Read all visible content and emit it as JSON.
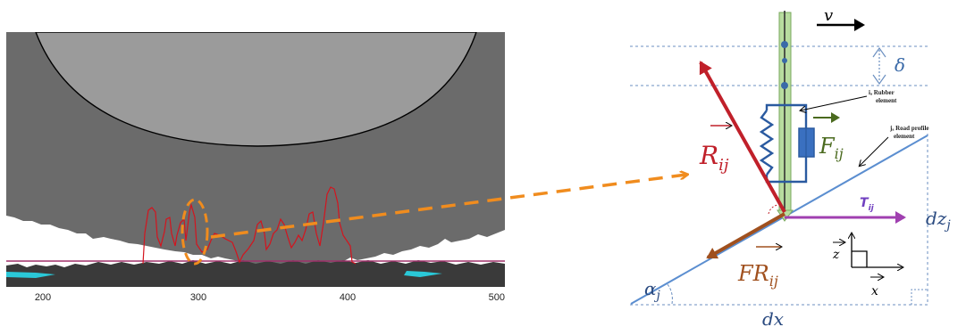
{
  "colors": {
    "panel_bg": "#6b6b6b",
    "tire_fill": "#9b9b9b",
    "road_profile": "#3a3a3a",
    "contact_trace": "#d4141e",
    "reference_line": "#a0306a",
    "water": "#2ac8d8",
    "zoom_arrow": "#f08c1e",
    "force_R": "#c0202a",
    "force_F": "#4a6a1e",
    "force_FR": "#a0501e",
    "force_T": "#a040b0",
    "road_line": "#5b8ed0",
    "dashed_guides": "#6b8fc0",
    "spring_damper": "#2a5aa0",
    "stem": "#b8dca0"
  },
  "axis": {
    "ticks": [
      "200",
      "300",
      "400",
      "500"
    ]
  },
  "labels": {
    "velocity": "v",
    "penetration": "δ",
    "rubber_note_1": "iₐ Rubber",
    "rubber_note_2": "element",
    "road_note_1": "jₐ Road profile",
    "road_note_2": "element",
    "R": "R",
    "R_sub": "ij",
    "F": "F",
    "F_sub": "ij",
    "T": "T",
    "T_sub": "ij",
    "FR": "FR",
    "FR_sub": "ij",
    "alpha": "α",
    "alpha_sub": "j",
    "dz": "dz",
    "dz_sub": "j",
    "dx": "dx",
    "x": "x",
    "z": "z"
  }
}
